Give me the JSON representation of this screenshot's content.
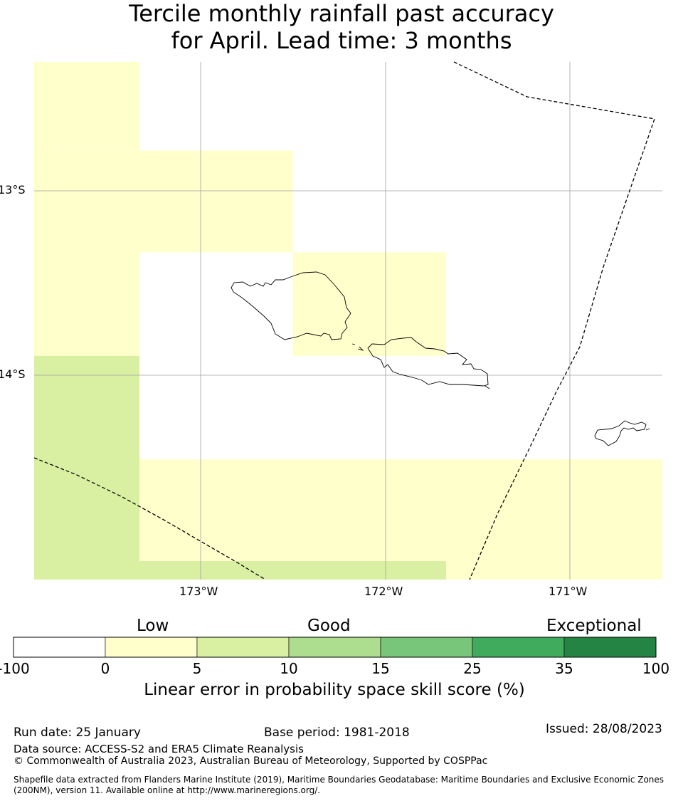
{
  "title": {
    "line1": "Tercile monthly rainfall past accuracy",
    "line2": "for April. Lead time: 3 months"
  },
  "map": {
    "region": "Samoa",
    "lat_labels": [
      "13°S",
      "14°S"
    ],
    "lon_labels": [
      "173°W",
      "172°W",
      "171°W"
    ],
    "cells": [
      {
        "lon": [
          -173.9,
          -173.33
        ],
        "lat": [
          -12.3,
          -12.78
        ],
        "category": "0-5"
      },
      {
        "lon": [
          -173.9,
          -172.5
        ],
        "lat": [
          -12.78,
          -13.33
        ],
        "category": "0-5"
      },
      {
        "lon": [
          -173.9,
          -173.33
        ],
        "lat": [
          -13.33,
          -13.89
        ],
        "category": "0-5"
      },
      {
        "lon": [
          -172.5,
          -171.67
        ],
        "lat": [
          -13.33,
          -13.89
        ],
        "category": "0-5"
      },
      {
        "lon": [
          -173.9,
          -173.33
        ],
        "lat": [
          -13.89,
          -15.1
        ],
        "category": "5-10"
      },
      {
        "lon": [
          -173.33,
          -170.5
        ],
        "lat": [
          -14.45,
          -15.0
        ],
        "category": "0-5"
      },
      {
        "lon": [
          -173.33,
          -171.67
        ],
        "lat": [
          -15.0,
          -15.1
        ],
        "category": "5-10"
      },
      {
        "lon": [
          -171.67,
          -170.5
        ],
        "lat": [
          -15.0,
          -15.1
        ],
        "category": "0-5"
      }
    ],
    "colors": {
      "low": "#ffffcc",
      "light_green": "#d9f0a3",
      "gridline": "#a0a0a0",
      "coastline": "#000000"
    }
  },
  "colorbar": {
    "categories": [
      "Low",
      "Good",
      "Exceptional"
    ],
    "ticks": [
      "-100",
      "0",
      "5",
      "10",
      "15",
      "25",
      "35",
      "100"
    ],
    "colors": [
      "#ffffff",
      "#ffffcc",
      "#d9f0a3",
      "#addd8e",
      "#78c679",
      "#41ab5d",
      "#238443"
    ],
    "label": "Linear error in probability space skill score (%)"
  },
  "footer": {
    "run_date": "Run date: 25 January",
    "base_period": "Base period: 1981-2018",
    "issued": "Issued: 28/08/2023",
    "data_source": "Data source: ACCESS-S2 and ERA5 Climate Reanalysis",
    "copyright": "© Commonwealth of Australia 2023, Australian Bureau of Meteorology, Supported by COSPPac",
    "shapefile_line1": "Shapefile data extracted from Flanders Marine Institute (2019), Maritime Boundaries Geodatabase: Maritime Boundaries and Exclusive Economic Zones",
    "shapefile_line2": "(200NM), version 11. Available online at http://www.marineregions.org/."
  }
}
